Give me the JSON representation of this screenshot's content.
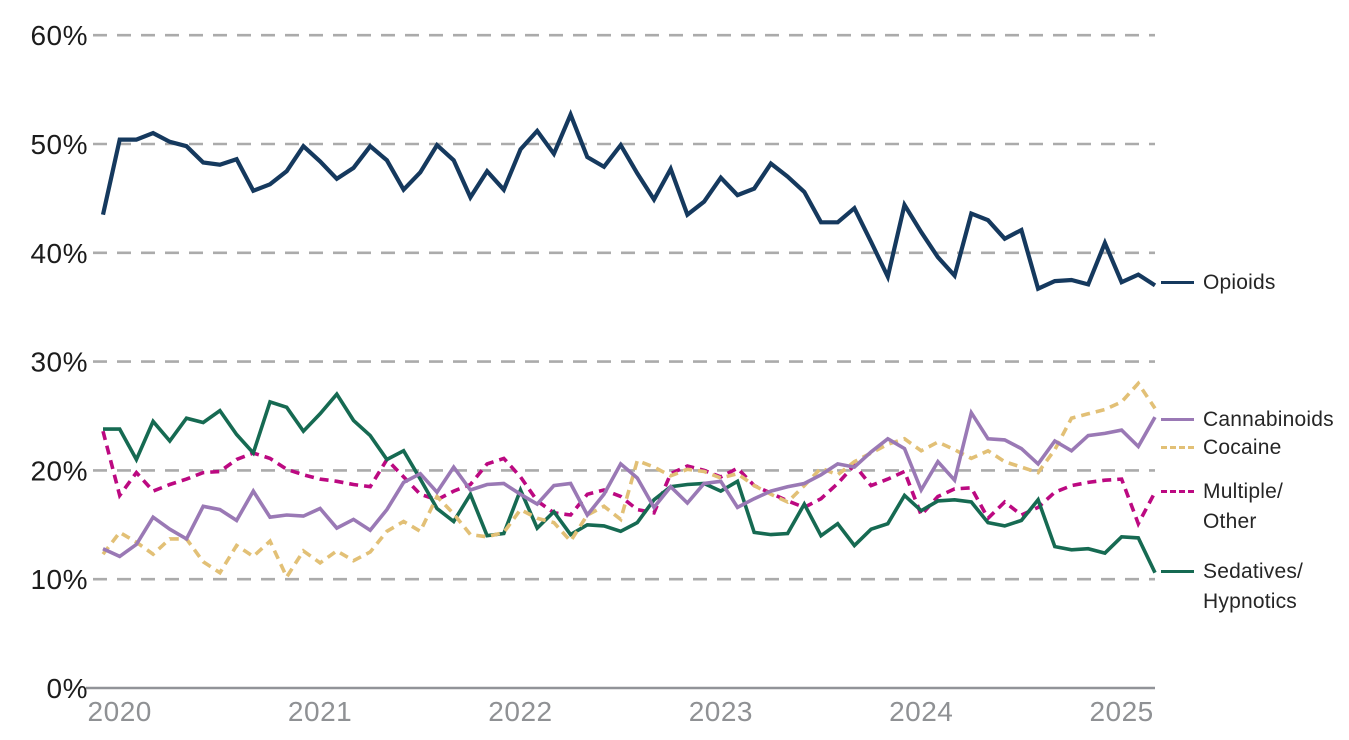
{
  "chart_data": {
    "type": "line",
    "grid": "horizontal-dashed",
    "legend_position": "right",
    "x_axis": {
      "tick_labels": [
        "2020",
        "2021",
        "2022",
        "2023",
        "2024",
        "2025"
      ],
      "tick_month_indices": [
        1,
        13,
        25,
        37,
        49,
        61
      ],
      "frequency": "monthly",
      "points_per_series": 64
    },
    "y_axis": {
      "unit": "%",
      "ylim": [
        0,
        60
      ],
      "ticks": [
        0,
        10,
        20,
        30,
        40,
        50,
        60
      ],
      "tick_labels": [
        "0%",
        "10%",
        "20%",
        "30%",
        "40%",
        "50%",
        "60%"
      ]
    },
    "series": [
      {
        "id": "opioids",
        "name": "Opioids",
        "label": "Opioids",
        "color": "#15395e",
        "line_style": "solid",
        "values": [
          43.5,
          50.4,
          50.4,
          51.0,
          50.2,
          49.8,
          48.3,
          48.1,
          48.6,
          45.7,
          46.3,
          47.5,
          49.8,
          48.4,
          46.8,
          47.8,
          49.8,
          48.5,
          45.8,
          47.4,
          49.9,
          48.5,
          45.1,
          47.5,
          45.8,
          49.5,
          51.2,
          49.1,
          52.7,
          48.8,
          47.9,
          49.9,
          47.3,
          44.9,
          47.7,
          43.5,
          44.7,
          46.9,
          45.3,
          45.9,
          48.2,
          47.0,
          45.6,
          42.8,
          42.8,
          44.1,
          41.0,
          37.8,
          44.4,
          41.9,
          39.6,
          37.9,
          43.6,
          43.0,
          41.3,
          42.1,
          36.7,
          37.4,
          37.5,
          37.1,
          40.9,
          37.3,
          38.0,
          37.0
        ]
      },
      {
        "id": "cannabinoids",
        "name": "Cannabinoids",
        "label": "Cannabinoids",
        "color": "#9a79b5",
        "line_style": "solid",
        "values": [
          12.8,
          12.1,
          13.2,
          15.7,
          14.6,
          13.7,
          16.7,
          16.4,
          15.4,
          18.1,
          15.7,
          15.9,
          15.8,
          16.5,
          14.7,
          15.5,
          14.5,
          16.4,
          18.9,
          19.7,
          18.0,
          20.3,
          18.2,
          18.7,
          18.8,
          17.8,
          16.9,
          18.6,
          18.8,
          15.9,
          17.8,
          20.6,
          19.3,
          16.6,
          18.5,
          17.0,
          18.8,
          19.0,
          16.6,
          17.4,
          18.1,
          18.5,
          18.8,
          19.6,
          20.6,
          20.3,
          21.7,
          22.9,
          22.0,
          18.2,
          20.8,
          19.1,
          25.3,
          22.9,
          22.8,
          22.0,
          20.6,
          22.7,
          21.8,
          23.2,
          23.4,
          23.7,
          22.2,
          24.9
        ]
      },
      {
        "id": "cocaine",
        "name": "Cocaine",
        "label": "Cocaine",
        "color": "#e2c076",
        "line_style": "dashed",
        "values": [
          12.3,
          14.3,
          13.4,
          12.3,
          13.7,
          13.7,
          11.6,
          10.6,
          13.1,
          12.1,
          13.5,
          10.2,
          12.6,
          11.5,
          12.6,
          11.7,
          12.5,
          14.4,
          15.3,
          14.4,
          17.6,
          16.0,
          14.1,
          13.9,
          14.3,
          16.4,
          15.6,
          15.2,
          13.5,
          15.9,
          16.7,
          15.5,
          20.9,
          20.3,
          19.5,
          20.1,
          19.9,
          19.3,
          19.7,
          18.6,
          17.8,
          17.1,
          18.6,
          20.2,
          19.6,
          20.8,
          21.6,
          22.4,
          22.9,
          21.8,
          22.6,
          21.9,
          21.1,
          21.8,
          20.8,
          20.3,
          19.8,
          21.9,
          24.8,
          25.2,
          25.6,
          26.3,
          28.0,
          25.7
        ]
      },
      {
        "id": "multiple-other",
        "name": "Multiple/Other",
        "label": "Multiple/\nOther",
        "color": "#bc0981",
        "line_style": "dashed",
        "values": [
          23.6,
          17.7,
          19.8,
          18.1,
          18.7,
          19.2,
          19.8,
          19.9,
          21.0,
          21.6,
          21.1,
          20.1,
          19.6,
          19.2,
          19.0,
          18.7,
          18.5,
          21.0,
          19.4,
          17.8,
          17.3,
          18.1,
          18.7,
          20.6,
          21.1,
          19.4,
          17.2,
          16.1,
          15.9,
          17.8,
          18.2,
          17.6,
          16.4,
          16.1,
          19.7,
          20.4,
          20.0,
          19.4,
          20.2,
          18.6,
          17.9,
          17.2,
          16.6,
          17.4,
          18.8,
          20.5,
          18.6,
          19.2,
          19.9,
          15.9,
          17.6,
          18.3,
          18.4,
          15.6,
          17.1,
          15.9,
          16.6,
          18.0,
          18.6,
          18.9,
          19.1,
          19.2,
          15.1,
          18.0
        ]
      },
      {
        "id": "sedatives-hypnotics",
        "name": "Sedatives/Hypnotics",
        "label": "Sedatives/\nHypnotics",
        "color": "#166a52",
        "line_style": "solid",
        "values": [
          23.8,
          23.8,
          21.0,
          24.5,
          22.7,
          24.8,
          24.4,
          25.5,
          23.3,
          21.6,
          26.3,
          25.8,
          23.6,
          25.2,
          27.0,
          24.6,
          23.2,
          21.0,
          21.8,
          19.2,
          16.5,
          15.3,
          17.8,
          14.0,
          14.2,
          18.2,
          14.7,
          16.2,
          14.1,
          15.0,
          14.9,
          14.4,
          15.2,
          17.3,
          18.5,
          18.7,
          18.8,
          18.1,
          19.0,
          14.3,
          14.1,
          14.2,
          16.9,
          14.0,
          15.1,
          13.1,
          14.6,
          15.1,
          17.7,
          16.3,
          17.2,
          17.3,
          17.1,
          15.2,
          14.9,
          15.4,
          17.3,
          13.0,
          12.7,
          12.8,
          12.4,
          13.9,
          13.8,
          10.6
        ]
      }
    ]
  }
}
